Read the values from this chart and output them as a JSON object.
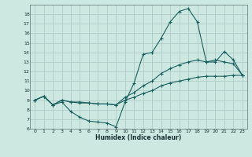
{
  "xlabel": "Humidex (Indice chaleur)",
  "bg_color": "#cce8e0",
  "grid_color": "#b0ccc8",
  "line_color": "#1a6060",
  "xlim": [
    -0.5,
    23.5
  ],
  "ylim": [
    6,
    19
  ],
  "xticks": [
    0,
    1,
    2,
    3,
    4,
    5,
    6,
    7,
    8,
    9,
    10,
    11,
    12,
    13,
    14,
    15,
    16,
    17,
    18,
    19,
    20,
    21,
    22,
    23
  ],
  "yticks": [
    6,
    7,
    8,
    9,
    10,
    11,
    12,
    13,
    14,
    15,
    16,
    17,
    18
  ],
  "lines": [
    {
      "x": [
        0,
        1,
        2,
        3,
        4,
        5,
        6,
        7,
        8,
        9,
        10,
        11,
        12,
        13,
        14,
        15,
        16,
        17,
        18,
        19,
        20,
        21,
        22,
        23
      ],
      "y": [
        9,
        9.4,
        8.5,
        8.8,
        7.8,
        7.2,
        6.8,
        6.7,
        6.6,
        6.2,
        8.8,
        10.8,
        13.8,
        14.0,
        15.5,
        17.2,
        18.3,
        18.6,
        17.2,
        13.0,
        13.0,
        14.1,
        13.2,
        11.6
      ]
    },
    {
      "x": [
        0,
        1,
        2,
        3,
        4,
        5,
        6,
        7,
        8,
        9,
        10,
        11,
        12,
        13,
        14,
        15,
        16,
        17,
        18,
        19,
        20,
        21,
        22,
        23
      ],
      "y": [
        9,
        9.4,
        8.5,
        9.0,
        8.8,
        8.8,
        8.7,
        8.6,
        8.6,
        8.5,
        9.3,
        9.8,
        10.5,
        11.0,
        11.8,
        12.3,
        12.7,
        13.0,
        13.2,
        13.0,
        13.2,
        13.0,
        12.8,
        11.6
      ]
    },
    {
      "x": [
        0,
        1,
        2,
        3,
        4,
        5,
        6,
        7,
        8,
        9,
        10,
        11,
        12,
        13,
        14,
        15,
        16,
        17,
        18,
        19,
        20,
        21,
        22,
        23
      ],
      "y": [
        9,
        9.4,
        8.5,
        9.0,
        8.8,
        8.7,
        8.7,
        8.6,
        8.6,
        8.5,
        9.0,
        9.3,
        9.7,
        10.0,
        10.5,
        10.8,
        11.0,
        11.2,
        11.4,
        11.5,
        11.5,
        11.5,
        11.6,
        11.6
      ]
    }
  ]
}
